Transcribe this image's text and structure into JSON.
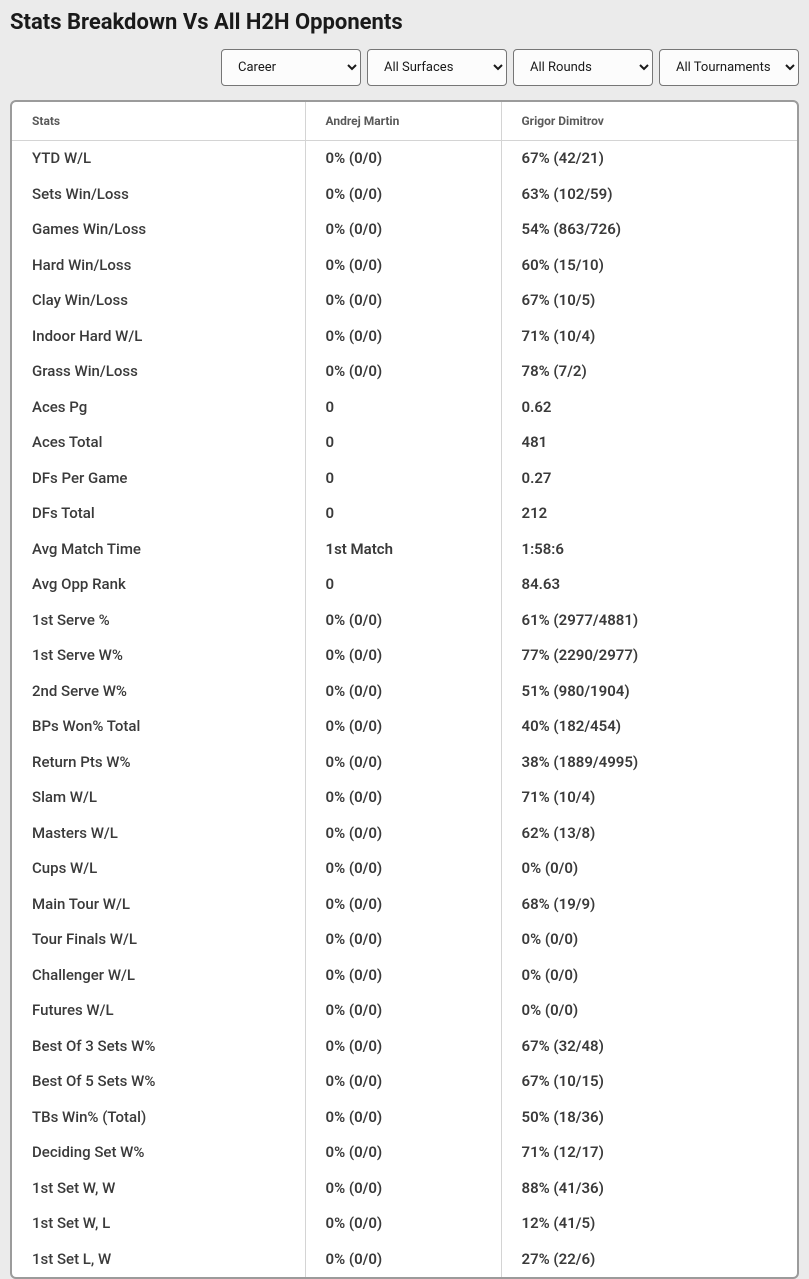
{
  "title": "Stats Breakdown Vs All H2H Opponents",
  "filters": {
    "period": {
      "selected": "Career",
      "options": [
        "Career"
      ]
    },
    "surfaces": {
      "selected": "All Surfaces",
      "options": [
        "All Surfaces"
      ]
    },
    "rounds": {
      "selected": "All Rounds",
      "options": [
        "All Rounds"
      ]
    },
    "tournaments": {
      "selected": "All Tournaments",
      "options": [
        "All Tournaments"
      ]
    }
  },
  "table": {
    "headers": {
      "stats": "Stats",
      "player1": "Andrej Martin",
      "player2": "Grigor Dimitrov"
    },
    "rows": [
      {
        "stat": "YTD W/L",
        "p1": "0% (0/0)",
        "p2": "67% (42/21)"
      },
      {
        "stat": "Sets Win/Loss",
        "p1": "0% (0/0)",
        "p2": "63% (102/59)"
      },
      {
        "stat": "Games Win/Loss",
        "p1": "0% (0/0)",
        "p2": "54% (863/726)"
      },
      {
        "stat": "Hard Win/Loss",
        "p1": "0% (0/0)",
        "p2": "60% (15/10)"
      },
      {
        "stat": "Clay Win/Loss",
        "p1": "0% (0/0)",
        "p2": "67% (10/5)"
      },
      {
        "stat": "Indoor Hard W/L",
        "p1": "0% (0/0)",
        "p2": "71% (10/4)"
      },
      {
        "stat": "Grass Win/Loss",
        "p1": "0% (0/0)",
        "p2": "78% (7/2)"
      },
      {
        "stat": "Aces Pg",
        "p1": "0",
        "p2": "0.62"
      },
      {
        "stat": "Aces Total",
        "p1": "0",
        "p2": "481"
      },
      {
        "stat": "DFs Per Game",
        "p1": "0",
        "p2": "0.27"
      },
      {
        "stat": "DFs Total",
        "p1": "0",
        "p2": "212"
      },
      {
        "stat": "Avg Match Time",
        "p1": "1st Match",
        "p2": "1:58:6"
      },
      {
        "stat": "Avg Opp Rank",
        "p1": "0",
        "p2": "84.63"
      },
      {
        "stat": "1st Serve %",
        "p1": "0% (0/0)",
        "p2": "61% (2977/4881)"
      },
      {
        "stat": "1st Serve W%",
        "p1": "0% (0/0)",
        "p2": "77% (2290/2977)"
      },
      {
        "stat": "2nd Serve W%",
        "p1": "0% (0/0)",
        "p2": "51% (980/1904)"
      },
      {
        "stat": "BPs Won% Total",
        "p1": "0% (0/0)",
        "p2": "40% (182/454)"
      },
      {
        "stat": "Return Pts W%",
        "p1": "0% (0/0)",
        "p2": "38% (1889/4995)"
      },
      {
        "stat": "Slam W/L",
        "p1": "0% (0/0)",
        "p2": "71% (10/4)"
      },
      {
        "stat": "Masters W/L",
        "p1": "0% (0/0)",
        "p2": "62% (13/8)"
      },
      {
        "stat": "Cups W/L",
        "p1": "0% (0/0)",
        "p2": "0% (0/0)"
      },
      {
        "stat": "Main Tour W/L",
        "p1": "0% (0/0)",
        "p2": "68% (19/9)"
      },
      {
        "stat": "Tour Finals W/L",
        "p1": "0% (0/0)",
        "p2": "0% (0/0)"
      },
      {
        "stat": "Challenger W/L",
        "p1": "0% (0/0)",
        "p2": "0% (0/0)"
      },
      {
        "stat": "Futures W/L",
        "p1": "0% (0/0)",
        "p2": "0% (0/0)"
      },
      {
        "stat": "Best Of 3 Sets W%",
        "p1": "0% (0/0)",
        "p2": "67% (32/48)"
      },
      {
        "stat": "Best Of 5 Sets W%",
        "p1": "0% (0/0)",
        "p2": "67% (10/15)"
      },
      {
        "stat": "TBs Win% (Total)",
        "p1": "0% (0/0)",
        "p2": "50% (18/36)"
      },
      {
        "stat": "Deciding Set W%",
        "p1": "0% (0/0)",
        "p2": "71% (12/17)"
      },
      {
        "stat": "1st Set W, W",
        "p1": "0% (0/0)",
        "p2": "88% (41/36)"
      },
      {
        "stat": "1st Set W, L",
        "p1": "0% (0/0)",
        "p2": "12% (41/5)"
      },
      {
        "stat": "1st Set L, W",
        "p1": "0% (0/0)",
        "p2": "27% (22/6)"
      }
    ]
  },
  "colors": {
    "page_background": "#ebebeb",
    "table_background": "#ffffff",
    "table_border": "#9b9b9b",
    "cell_border": "#d4d4d4",
    "header_text": "#595959",
    "body_text": "#3a3a3a",
    "title_text": "#1a1a1a",
    "select_border": "#767676",
    "select_background": "#fcfcfc"
  }
}
